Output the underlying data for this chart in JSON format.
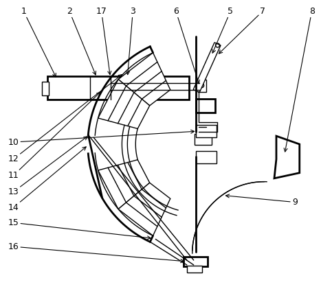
{
  "bg_color": "#ffffff",
  "lc": "#000000",
  "lw": 1.0,
  "tlw": 2.0,
  "fw": 4.83,
  "fh": 4.37,
  "dpi": 100
}
